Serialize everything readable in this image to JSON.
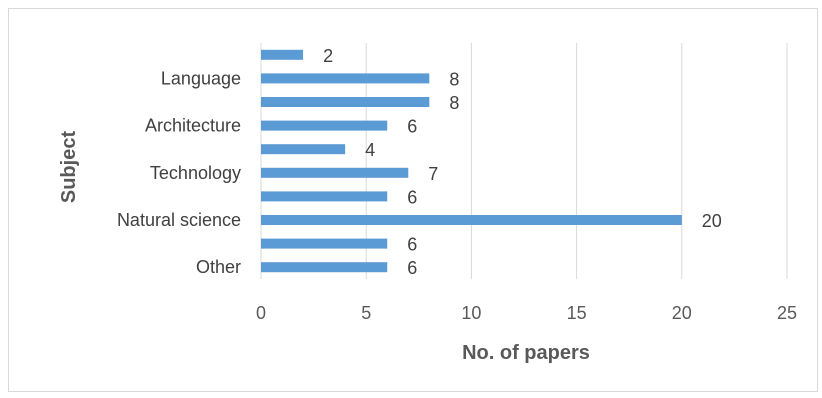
{
  "chart_data": {
    "type": "bar",
    "orientation": "horizontal",
    "categories": [
      "Other",
      "",
      "Natural science",
      "",
      "Technology",
      "",
      "Architecture",
      "",
      "Language",
      ""
    ],
    "values": [
      6,
      6,
      20,
      6,
      7,
      4,
      6,
      8,
      8,
      2
    ],
    "xlabel": "No. of papers",
    "ylabel": "Subject",
    "xlim": [
      0,
      25
    ],
    "xticks": [
      0,
      5,
      10,
      15,
      20,
      25
    ],
    "grid": "vertical",
    "data_labels": true,
    "bar_color": "#5b9bd5"
  }
}
